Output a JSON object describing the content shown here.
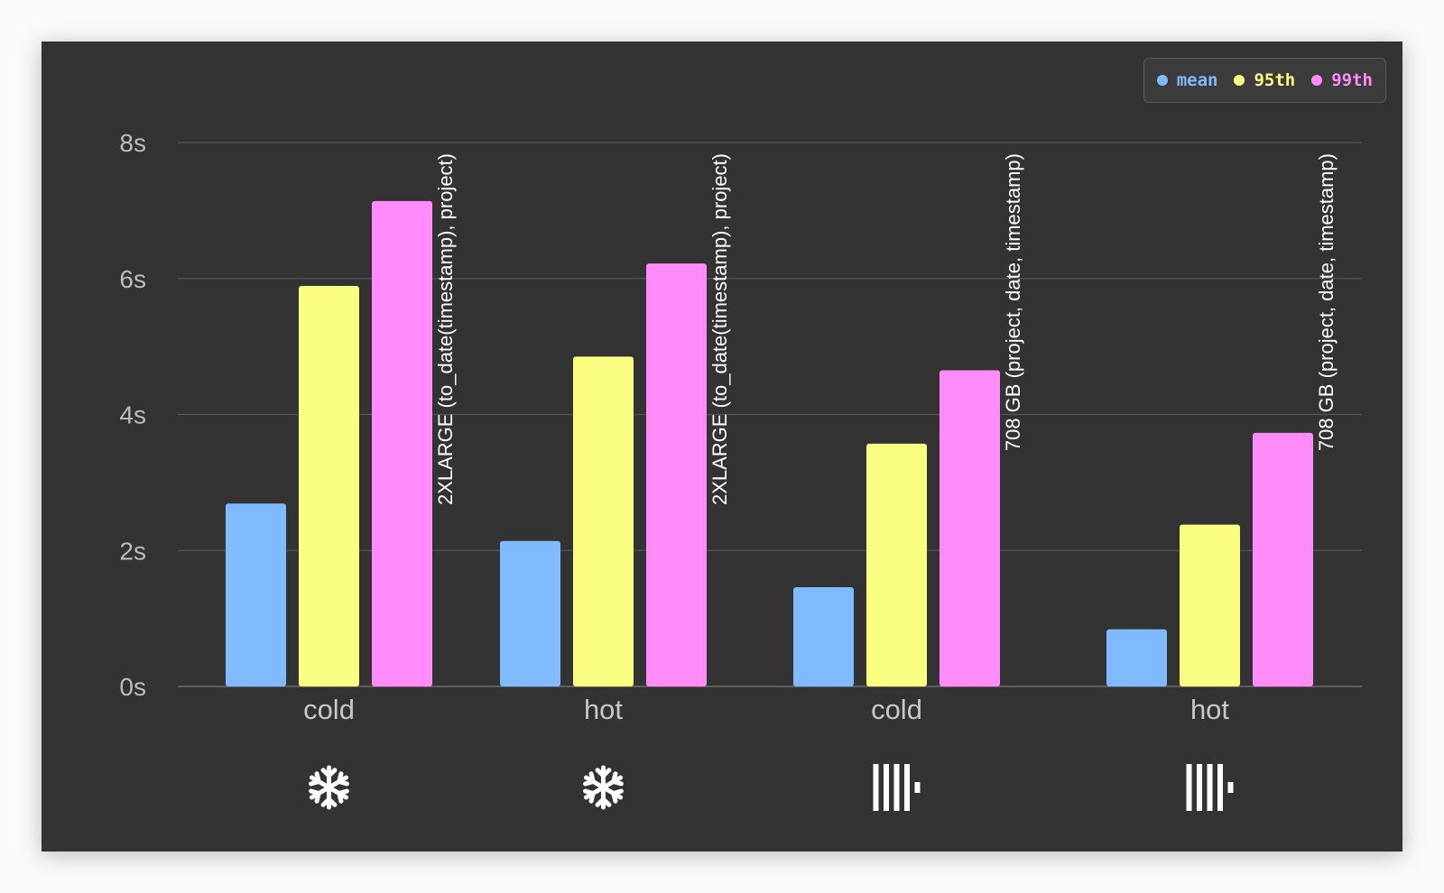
{
  "chart_data": {
    "type": "bar",
    "title": "",
    "xlabel": "",
    "ylabel": "",
    "ylim": [
      0,
      8
    ],
    "yticks": [
      "0s",
      "2s",
      "4s",
      "6s",
      "8s"
    ],
    "grid": true,
    "legend_position": "top-right",
    "categories": [
      "cold",
      "hot",
      "cold",
      "hot"
    ],
    "category_icons": [
      "snowflake-icon",
      "snowflake-icon",
      "clickhouse-icon",
      "clickhouse-icon"
    ],
    "group_annotations": [
      "2XLARGE (to_date(timestamp), project)",
      "2XLARGE (to_date(timestamp), project)",
      "708 GB (project, date, timestamp)",
      "708 GB (project, date, timestamp)"
    ],
    "series": [
      {
        "name": "mean",
        "color": "#80bbff",
        "values": [
          2.69,
          2.14,
          1.46,
          0.84
        ]
      },
      {
        "name": "95th",
        "color": "#faff81",
        "values": [
          5.89,
          4.85,
          3.57,
          2.38
        ]
      },
      {
        "name": "99th",
        "color": "#ff8cf8",
        "values": [
          7.14,
          6.22,
          4.65,
          3.73
        ]
      }
    ]
  }
}
